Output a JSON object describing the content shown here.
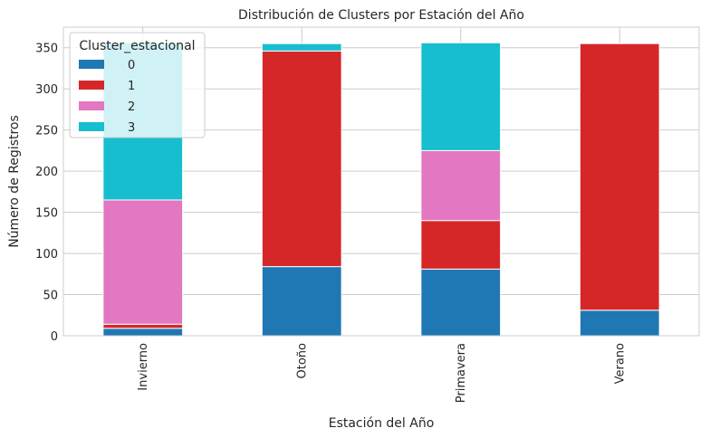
{
  "chart_data": {
    "type": "bar",
    "stacked": true,
    "title": "Distribución de Clusters por Estación del Año",
    "xlabel": "Estación del Año",
    "ylabel": "Número de Registros",
    "categories": [
      "Invierno",
      "Otoño",
      "Primavera",
      "Verano"
    ],
    "ylim": [
      0,
      375
    ],
    "yticks": [
      0,
      50,
      100,
      150,
      200,
      250,
      300,
      350
    ],
    "grid": true,
    "legend": {
      "title": "Cluster_estacional",
      "placement": "top-left"
    },
    "series": [
      {
        "name": "0",
        "color": "#1f77b4",
        "values": [
          9,
          84,
          81,
          31
        ]
      },
      {
        "name": "1",
        "color": "#d62728",
        "values": [
          5,
          262,
          59,
          324
        ]
      },
      {
        "name": "2",
        "color": "#e377c2",
        "values": [
          151,
          0,
          85,
          0
        ]
      },
      {
        "name": "3",
        "color": "#17becf",
        "values": [
          191,
          9,
          131,
          0
        ]
      }
    ]
  }
}
